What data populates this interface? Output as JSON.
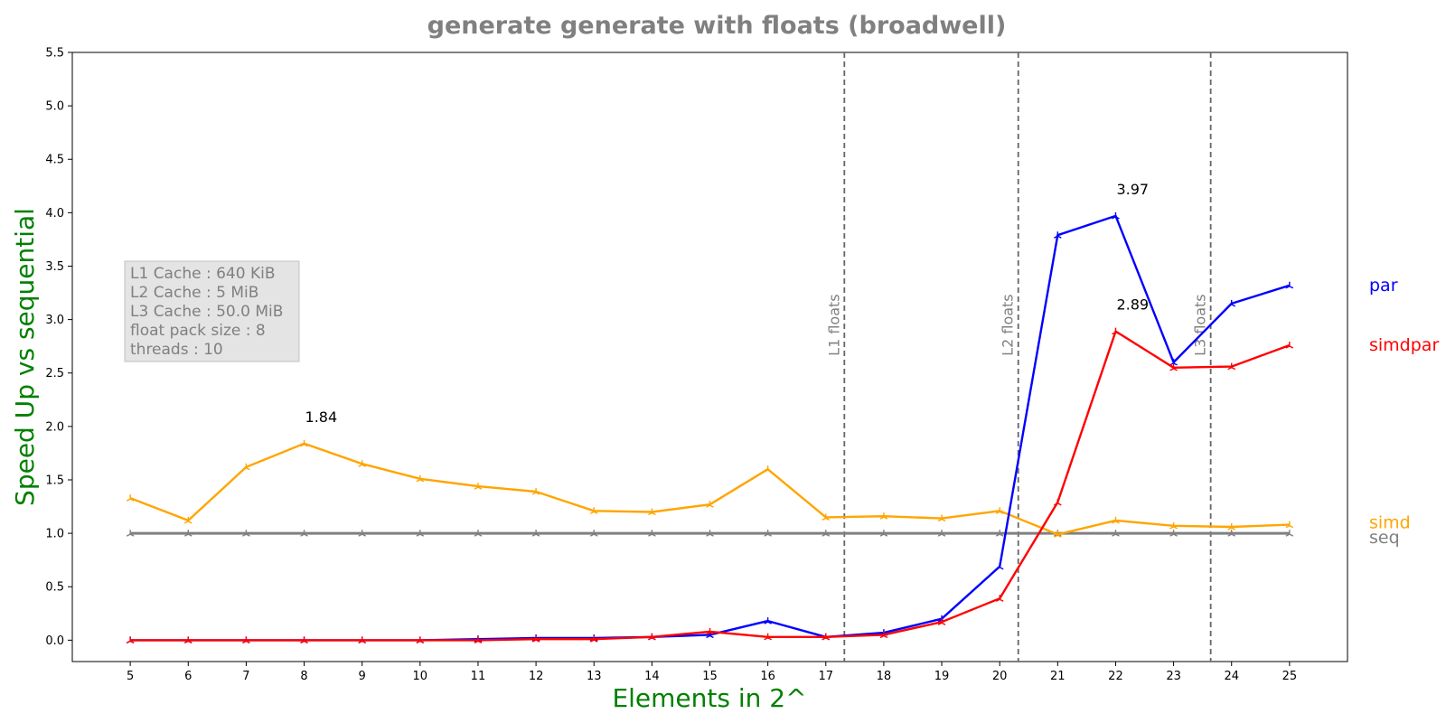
{
  "chart_data": {
    "type": "line",
    "title": "generate generate with floats  (broadwell)",
    "xlabel": "Elements in 2^",
    "ylabel": "Speed Up vs sequential",
    "x": [
      5,
      6,
      7,
      8,
      9,
      10,
      11,
      12,
      13,
      14,
      15,
      16,
      17,
      18,
      19,
      20,
      21,
      22,
      23,
      24,
      25
    ],
    "xlim": [
      4,
      26
    ],
    "ylim": [
      -0.2,
      5.5
    ],
    "yticks": [
      0.0,
      0.5,
      1.0,
      1.5,
      2.0,
      2.5,
      3.0,
      3.5,
      4.0,
      4.5,
      5.0,
      5.5
    ],
    "grid": false,
    "series": [
      {
        "name": "seq",
        "color": "#808080",
        "values": [
          1.0,
          1.0,
          1.0,
          1.0,
          1.0,
          1.0,
          1.0,
          1.0,
          1.0,
          1.0,
          1.0,
          1.0,
          1.0,
          1.0,
          1.0,
          1.0,
          1.0,
          1.0,
          1.0,
          1.0,
          1.0
        ]
      },
      {
        "name": "simd",
        "color": "#ffa500",
        "values": [
          1.33,
          1.12,
          1.62,
          1.84,
          1.65,
          1.51,
          1.44,
          1.39,
          1.21,
          1.2,
          1.27,
          1.6,
          1.15,
          1.16,
          1.14,
          1.21,
          0.99,
          1.12,
          1.07,
          1.06,
          1.08
        ]
      },
      {
        "name": "par",
        "color": "#0000ff",
        "values": [
          0.0,
          0.0,
          0.0,
          0.0,
          0.0,
          0.0,
          0.01,
          0.02,
          0.02,
          0.03,
          0.05,
          0.18,
          0.03,
          0.07,
          0.2,
          0.69,
          3.79,
          3.97,
          2.6,
          3.15,
          3.32
        ]
      },
      {
        "name": "simdpar",
        "color": "#ff0000",
        "values": [
          0.0,
          0.0,
          0.0,
          0.0,
          0.0,
          0.0,
          0.0,
          0.01,
          0.01,
          0.03,
          0.08,
          0.03,
          0.03,
          0.05,
          0.17,
          0.39,
          1.29,
          2.89,
          2.55,
          2.56,
          2.76
        ]
      }
    ],
    "annotations": [
      {
        "text": "1.84",
        "x": 8,
        "y": 1.84
      },
      {
        "text": "3.97",
        "x": 22,
        "y": 3.97
      },
      {
        "text": "2.89",
        "x": 22,
        "y": 2.89
      }
    ],
    "cache_lines": [
      {
        "label": "L1 floats",
        "x": 17.32
      },
      {
        "label": "L2 floats",
        "x": 20.32
      },
      {
        "label": "L3 floats",
        "x": 23.64
      }
    ],
    "info_box": [
      "L1 Cache : 640 KiB",
      "L2 Cache : 5 MiB",
      "L3 Cache : 50.0 MiB",
      "float pack size : 8",
      "threads : 10"
    ],
    "legend_placement": "right, at series end"
  }
}
